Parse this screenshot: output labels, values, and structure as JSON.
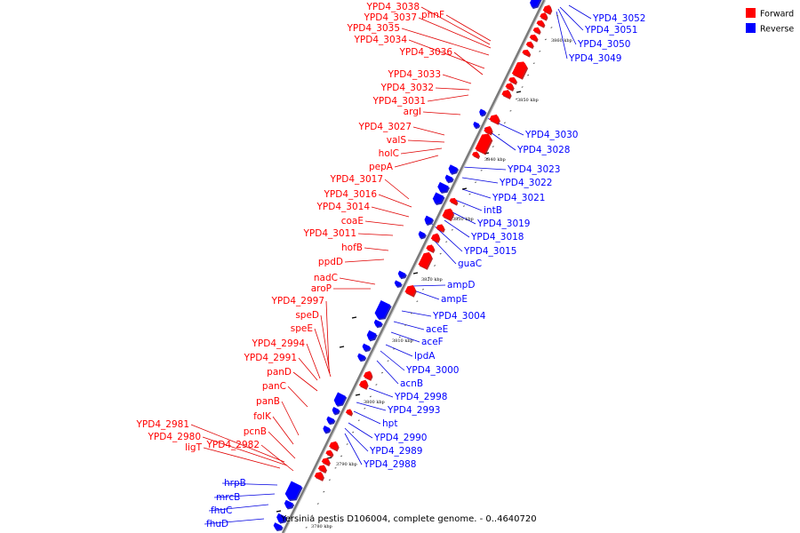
{
  "caption": "Yersinia pestis D106004, complete genome. - 0..4640720",
  "legend": [
    {
      "label": "Forward",
      "color": "#ff0000"
    },
    {
      "label": "Reverse",
      "color": "#0000ff"
    }
  ],
  "colors": {
    "forward": "#ff0000",
    "forward_edge": "#b00000",
    "reverse": "#0000ff",
    "reverse_edge": "#0000a8",
    "leader_forward": "#e00000",
    "leader_reverse": "#0000e0",
    "axis": "#7a7a7a"
  },
  "ticks": [
    "3860 kbp",
    "3850 kbp",
    "3840 kbp",
    "3830 kbp",
    "3820 kbp",
    "3810 kbp",
    "3800 kbp",
    "3790 kbp",
    "3780 kbp"
  ],
  "forward_labels": [
    "YPD4_3038",
    "phnF",
    "YPD4_3037",
    "YPD4_3035",
    "YPD4_3034",
    "YPD4_3036",
    "YPD4_3033",
    "YPD4_3032",
    "YPD4_3031",
    "argI",
    "YPD4_3027",
    "valS",
    "holC",
    "pepA",
    "YPD4_3017",
    "YPD4_3016",
    "YPD4_3014",
    "coaE",
    "YPD4_3011",
    "hofB",
    "ppdD",
    "nadC",
    "aroP",
    "YPD4_2997",
    "speD",
    "speE",
    "YPD4_2994",
    "YPD4_2991",
    "panD",
    "panC",
    "panB",
    "folK",
    "pcnB",
    "YPD4_2981",
    "YPD4_2980",
    "YPD4_2982",
    "ligT"
  ],
  "reverse_labels": [
    "YPD4_3052",
    "YPD4_3051",
    "YPD4_3050",
    "YPD4_3049",
    "YPD4_3030",
    "YPD4_3028",
    "YPD4_3023",
    "YPD4_3022",
    "YPD4_3021",
    "intB",
    "YPD4_3019",
    "YPD4_3018",
    "YPD4_3015",
    "guaC",
    "ampD",
    "ampE",
    "YPD4_3004",
    "aceE",
    "aceF",
    "lpdA",
    "YPD4_3000",
    "acnB",
    "YPD4_2998",
    "YPD4_2993",
    "hpt",
    "YPD4_2990",
    "YPD4_2989",
    "YPD4_2988",
    "hrpB",
    "mrcB",
    "fhuC",
    "fhuD"
  ]
}
